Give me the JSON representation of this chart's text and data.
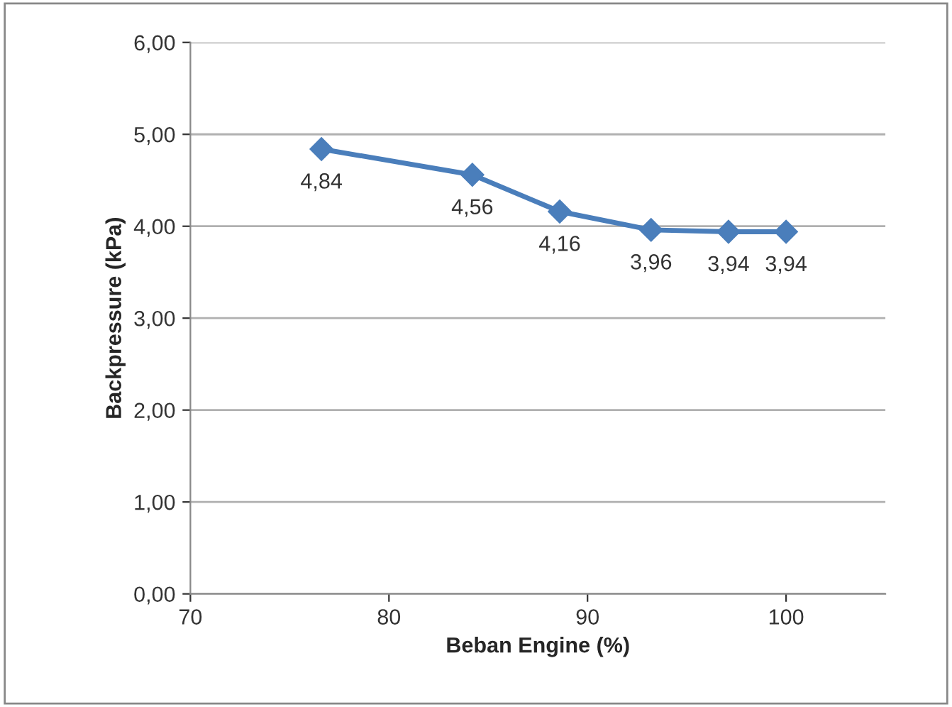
{
  "chart_data": {
    "type": "line",
    "xlabel": "Beban Engine (%)",
    "ylabel": "Backpressure (kPa)",
    "x": [
      76.6,
      84.2,
      88.6,
      93.2,
      97.1,
      100
    ],
    "series": [
      {
        "color": "#4a7ebb",
        "values": [
          4.84,
          4.56,
          4.16,
          3.96,
          3.94,
          3.94
        ],
        "value_labels": [
          "4,84",
          "4,56",
          "4,16",
          "3,96",
          "3,94",
          "3,94"
        ]
      }
    ],
    "xlim": [
      70,
      105
    ],
    "xticks": [
      70,
      80,
      90,
      100
    ],
    "ylim": [
      0,
      6
    ],
    "yticks": [
      {
        "value": 0,
        "label": "0,00"
      },
      {
        "value": 1,
        "label": "1,00"
      },
      {
        "value": 2,
        "label": "2,00"
      },
      {
        "value": 3,
        "label": "3,00"
      },
      {
        "value": 4,
        "label": "4,00"
      },
      {
        "value": 5,
        "label": "5,00"
      },
      {
        "value": 6,
        "label": "6,00"
      }
    ],
    "grid": "y",
    "marker": "diamond",
    "line_style": "solid"
  }
}
